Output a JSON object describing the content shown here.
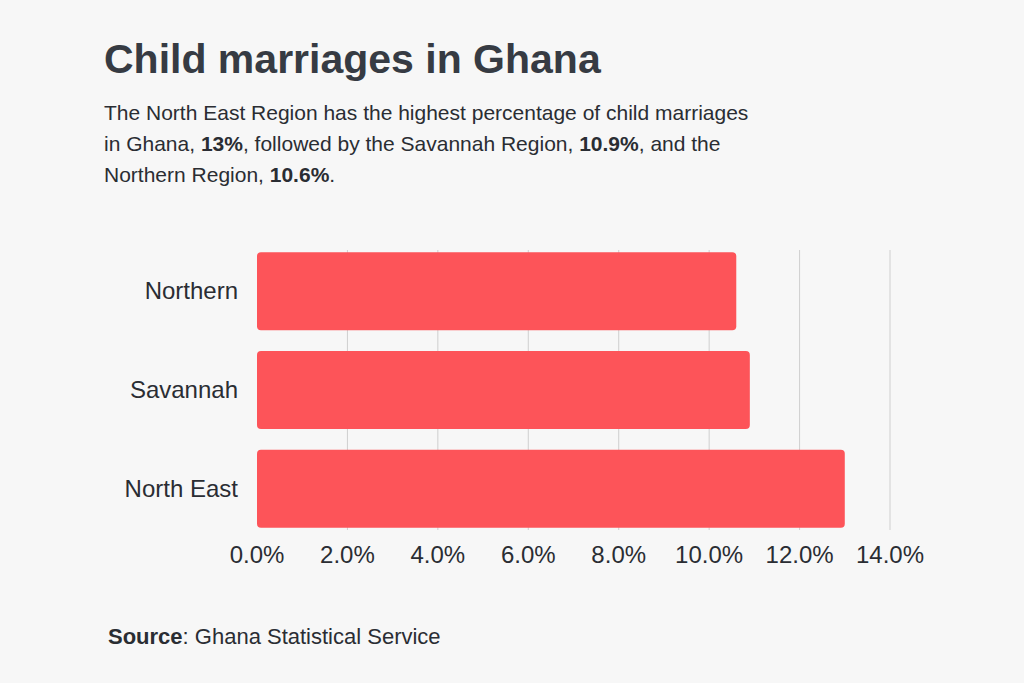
{
  "chart_data": {
    "type": "bar",
    "orientation": "horizontal",
    "title": "Child marriages in Ghana",
    "subtitle": [
      "The North East Region has the highest percentage of child marriages in Ghana, ",
      "13%",
      ", followed by the Savannah Region, ",
      "10.9%",
      ", and the Northern Region, ",
      "10.6%",
      "."
    ],
    "source": [
      "Source",
      ": Ghana Statistical Service"
    ],
    "categories": [
      "Northern",
      "Savannah",
      "North East"
    ],
    "values": [
      10.6,
      10.9,
      13
    ],
    "color": "#fd5459",
    "xlim": [
      0,
      14
    ],
    "xticks": [
      {
        "value": 0,
        "label": "0.0%"
      },
      {
        "value": 2,
        "label": "2.0%"
      },
      {
        "value": 4,
        "label": "4.0%"
      },
      {
        "value": 6,
        "label": "6.0%"
      },
      {
        "value": 8,
        "label": "8.0%"
      },
      {
        "value": 10,
        "label": "10.0%"
      },
      {
        "value": 12,
        "label": "12.0%"
      },
      {
        "value": 14,
        "label": "14.0%"
      }
    ],
    "grid": true
  }
}
